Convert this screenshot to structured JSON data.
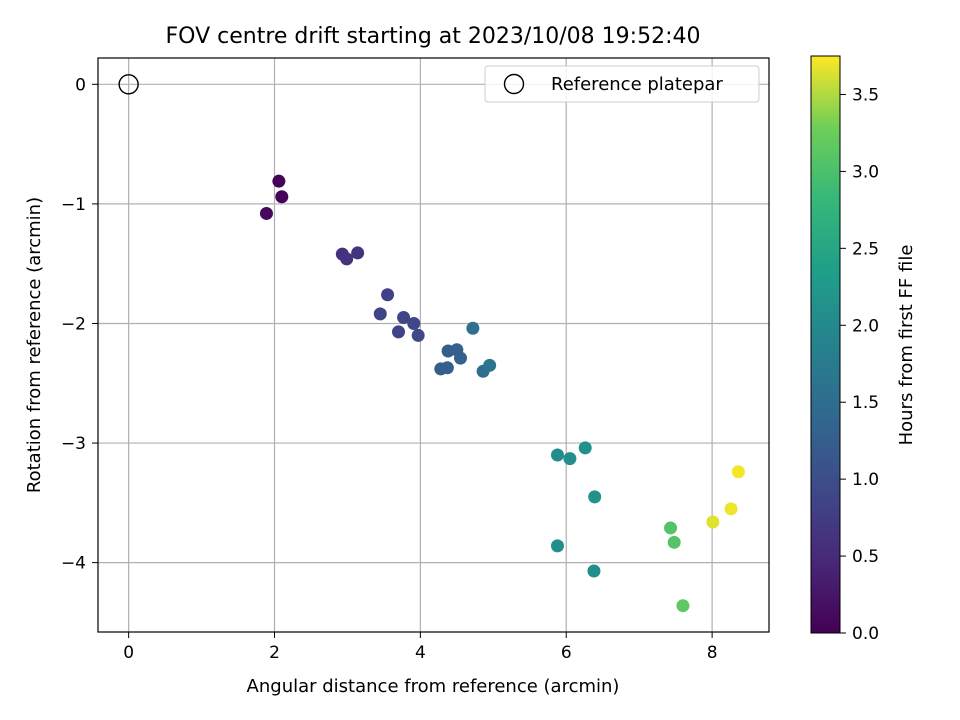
{
  "chart_data": {
    "type": "scatter",
    "title": "FOV centre drift starting at 2023/10/08 19:52:40",
    "xlabel": "Angular distance from reference (arcmin)",
    "ylabel": "Rotation from reference (arcmin)",
    "xlim": [
      -0.42,
      8.78
    ],
    "ylim": [
      -4.58,
      0.22
    ],
    "xticks": [
      0,
      2,
      4,
      6,
      8
    ],
    "yticks": [
      0,
      -1,
      -2,
      -3,
      -4
    ],
    "xtick_labels": [
      "0",
      "2",
      "4",
      "6",
      "8"
    ],
    "ytick_labels": [
      "0",
      "−1",
      "−2",
      "−3",
      "−4"
    ],
    "grid": true,
    "legend": {
      "position": "top-right",
      "entries": [
        "Reference platepar"
      ]
    },
    "reference": {
      "name": "Reference platepar",
      "x": 0,
      "y": 0
    },
    "colorbar": {
      "label": "Hours from first FF file",
      "range": [
        0,
        3.75
      ],
      "ticks": [
        0.0,
        0.5,
        1.0,
        1.5,
        2.0,
        2.5,
        3.0,
        3.5
      ],
      "tick_labels": [
        "0.0",
        "0.5",
        "1.0",
        "1.5",
        "2.0",
        "2.5",
        "3.0",
        "3.5"
      ],
      "colormap": "viridis"
    },
    "points": [
      {
        "x": 2.06,
        "y": -0.81,
        "hours": 0.02
      },
      {
        "x": 2.1,
        "y": -0.94,
        "hours": 0.05
      },
      {
        "x": 1.89,
        "y": -1.08,
        "hours": 0.08
      },
      {
        "x": 2.93,
        "y": -1.42,
        "hours": 0.6
      },
      {
        "x": 2.99,
        "y": -1.46,
        "hours": 0.62
      },
      {
        "x": 3.14,
        "y": -1.41,
        "hours": 0.64
      },
      {
        "x": 3.55,
        "y": -1.76,
        "hours": 0.82
      },
      {
        "x": 3.45,
        "y": -1.92,
        "hours": 0.85
      },
      {
        "x": 3.7,
        "y": -2.07,
        "hours": 0.85
      },
      {
        "x": 3.77,
        "y": -1.95,
        "hours": 0.88
      },
      {
        "x": 3.91,
        "y": -2.0,
        "hours": 0.9
      },
      {
        "x": 3.97,
        "y": -2.1,
        "hours": 0.92
      },
      {
        "x": 4.38,
        "y": -2.23,
        "hours": 1.25
      },
      {
        "x": 4.5,
        "y": -2.22,
        "hours": 1.28
      },
      {
        "x": 4.55,
        "y": -2.29,
        "hours": 1.3
      },
      {
        "x": 4.28,
        "y": -2.38,
        "hours": 1.25
      },
      {
        "x": 4.37,
        "y": -2.37,
        "hours": 1.27
      },
      {
        "x": 4.72,
        "y": -2.04,
        "hours": 1.55
      },
      {
        "x": 4.86,
        "y": -2.4,
        "hours": 1.52
      },
      {
        "x": 4.95,
        "y": -2.35,
        "hours": 1.6
      },
      {
        "x": 5.88,
        "y": -3.1,
        "hours": 2.05
      },
      {
        "x": 6.05,
        "y": -3.13,
        "hours": 2.1
      },
      {
        "x": 6.26,
        "y": -3.04,
        "hours": 2.12
      },
      {
        "x": 6.39,
        "y": -3.45,
        "hours": 2.15
      },
      {
        "x": 5.88,
        "y": -3.86,
        "hours": 2.08
      },
      {
        "x": 6.38,
        "y": -4.07,
        "hours": 2.1
      },
      {
        "x": 7.43,
        "y": -3.71,
        "hours": 3.05
      },
      {
        "x": 7.48,
        "y": -3.83,
        "hours": 3.08
      },
      {
        "x": 7.6,
        "y": -4.36,
        "hours": 3.15
      },
      {
        "x": 8.01,
        "y": -3.66,
        "hours": 3.65
      },
      {
        "x": 8.26,
        "y": -3.55,
        "hours": 3.7
      },
      {
        "x": 8.36,
        "y": -3.24,
        "hours": 3.72
      }
    ]
  }
}
